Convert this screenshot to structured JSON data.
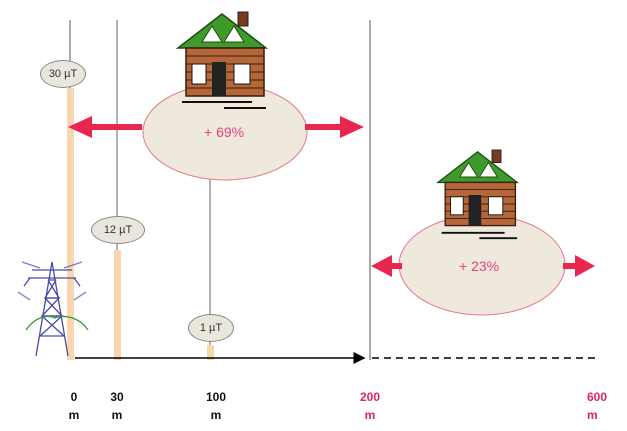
{
  "field_labels": {
    "at_0m": "30 µT",
    "at_30m": "12 µT",
    "at_100m": "1 µT"
  },
  "house_effects": {
    "near": "+ 69%",
    "far": "+ 23%"
  },
  "distance_axis": [
    {
      "value": "0",
      "unit": "m"
    },
    {
      "value": "30",
      "unit": "m"
    },
    {
      "value": "100",
      "unit": "m"
    },
    {
      "value": "200",
      "unit": "m"
    },
    {
      "value": "600",
      "unit": "m"
    }
  ],
  "colors": {
    "field_bar": "#f7d6b0",
    "arrow": "#e8264f",
    "ellipse_fill": "#efe9dd",
    "ellipse_stroke": "#e07a8f",
    "tower": "#4a4aa8",
    "roof": "#3f9a2c",
    "house_wall": "#b5673a",
    "highlight_text": "#d8285f"
  }
}
